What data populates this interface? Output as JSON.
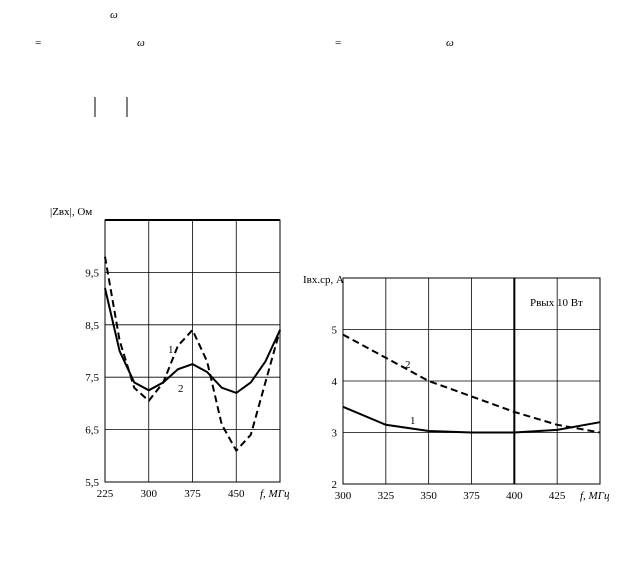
{
  "fragments": [
    "ω",
    "=",
    "ω",
    "=",
    "ω"
  ],
  "chart_data": [
    {
      "type": "line",
      "ylabel": "|Zвх|, Ом",
      "xlabel": "f, МГц",
      "x": [
        225,
        250,
        275,
        300,
        325,
        350,
        375,
        400,
        425,
        450,
        475,
        500,
        525
      ],
      "xlim": [
        225,
        525
      ],
      "xticks": [
        225,
        300,
        375,
        450
      ],
      "ylim": [
        5.5,
        10.5
      ],
      "yticks": [
        {
          "value": 5.5,
          "label": "5,5"
        },
        {
          "value": 6.5,
          "label": "6,5"
        },
        {
          "value": 7.5,
          "label": "7,5"
        },
        {
          "value": 8.5,
          "label": "8,5"
        },
        {
          "value": 9.5,
          "label": "9,5"
        }
      ],
      "grid": true,
      "series": [
        {
          "name": "1",
          "color": "#000000",
          "style": "solid",
          "values": [
            9.2,
            8.0,
            7.4,
            7.25,
            7.4,
            7.65,
            7.75,
            7.6,
            7.3,
            7.2,
            7.4,
            7.8,
            8.4
          ]
        },
        {
          "name": "2",
          "color": "#000000",
          "style": "dashed",
          "values": [
            9.8,
            8.2,
            7.3,
            7.05,
            7.4,
            8.1,
            8.4,
            7.8,
            6.6,
            6.1,
            6.4,
            7.4,
            8.4
          ]
        }
      ]
    },
    {
      "type": "line",
      "ylabel": "Iвх.ср, А",
      "xlabel": "f, МГц",
      "annotation": "Pвых 10 Вт",
      "x": [
        300,
        325,
        350,
        375,
        400,
        425,
        450
      ],
      "xlim": [
        300,
        450
      ],
      "xticks": [
        300,
        325,
        350,
        375,
        400,
        425
      ],
      "ylim": [
        2,
        6
      ],
      "yticks": [
        2,
        3,
        4,
        5
      ],
      "grid": true,
      "series": [
        {
          "name": "1",
          "color": "#000000",
          "style": "solid",
          "values": [
            3.5,
            3.15,
            3.03,
            3.0,
            3.0,
            3.05,
            3.2
          ]
        },
        {
          "name": "2",
          "color": "#000000",
          "style": "dashed",
          "values": [
            4.9,
            4.45,
            4.0,
            3.7,
            3.4,
            3.15,
            3.0
          ]
        }
      ]
    }
  ]
}
